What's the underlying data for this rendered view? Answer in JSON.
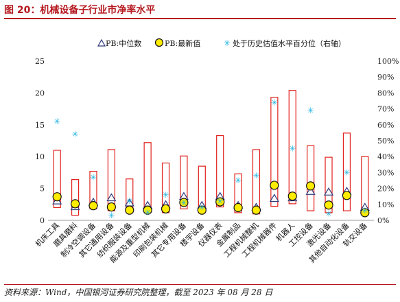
{
  "title": "图 20：机械设备子行业市净率水平",
  "source": "资料来源：Wind，中国银河证券研究院整理，截至 2023 年 08 月 28 日",
  "chart_data": {
    "type": "boxplot",
    "title": "",
    "categories": [
      "机床工具",
      "磨具磨料",
      "制冷空调设备",
      "其它通用设备",
      "纺织服装设备",
      "能源及重型机械",
      "印刷包装机械",
      "其它专用设备",
      "楼宇设备",
      "仪器仪表",
      "金属制品",
      "工程机械整机",
      "工程机械器件",
      "机器人",
      "工控设备",
      "激光设备",
      "其他自动化设备",
      "轨交设备"
    ],
    "legend": [
      "PB:中位数",
      "PB:最新值",
      "处于历史估值水平百分位（右轴）"
    ],
    "y_left": {
      "ticks": [
        0,
        5,
        10,
        15,
        20,
        25
      ],
      "ylim": [
        0,
        25
      ]
    },
    "y_right": {
      "ticks": [
        "0%",
        "10%",
        "20%",
        "30%",
        "40%",
        "50%",
        "60%",
        "70%",
        "80%",
        "90%",
        "100%"
      ],
      "ylim": [
        0,
        100
      ]
    },
    "range_low": [
      2.0,
      0.8,
      1.8,
      1.5,
      1.2,
      1.2,
      1.2,
      1.8,
      1.2,
      2.1,
      1.2,
      1.0,
      2.2,
      2.6,
      1.5,
      1.2,
      1.5,
      1.3
    ],
    "range_high": [
      11.0,
      6.4,
      7.7,
      11.1,
      6.5,
      12.2,
      9.0,
      10.1,
      8.5,
      13.3,
      7.3,
      11.1,
      19.3,
      20.4,
      11.7,
      9.9,
      13.7,
      10.0
    ],
    "median": [
      3.0,
      2.1,
      2.8,
      3.5,
      2.7,
      2.3,
      2.4,
      3.7,
      2.3,
      3.7,
      2.3,
      2.0,
      3.4,
      3.5,
      4.5,
      4.4,
      4.5,
      2.0
    ],
    "latest": [
      3.7,
      2.6,
      2.3,
      2.1,
      1.6,
      1.6,
      1.8,
      2.8,
      1.6,
      2.9,
      2.0,
      1.6,
      5.5,
      3.8,
      5.4,
      2.4,
      3.9,
      1.2
    ],
    "percentile": [
      62,
      54,
      27,
      3,
      12,
      5,
      16,
      11,
      8,
      12,
      25,
      28,
      74,
      45,
      69,
      4,
      30,
      6
    ],
    "colors": {
      "range": "#e0201b",
      "median": "#2f3a7a",
      "latest_fill": "#ffec00",
      "percentile": "#1fb3e3"
    }
  }
}
